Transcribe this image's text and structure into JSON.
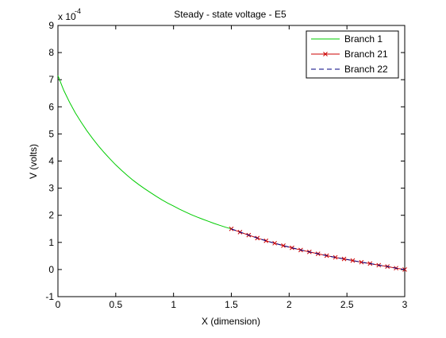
{
  "chart_data": {
    "type": "line",
    "title": "Steady - state voltage - E5",
    "xlabel": "X (dimension)",
    "ylabel": "V (volts)",
    "y_multiplier_base": "x 10",
    "y_multiplier_exp": "-4",
    "xlim": [
      0,
      3
    ],
    "ylim": [
      -1,
      9
    ],
    "xticks": [
      0,
      0.5,
      1,
      1.5,
      2,
      2.5,
      3
    ],
    "xtick_labels": [
      "0",
      "0.5",
      "1",
      "1.5",
      "2",
      "2.5",
      "3"
    ],
    "yticks": [
      -1,
      0,
      1,
      2,
      3,
      4,
      5,
      6,
      7,
      8,
      9
    ],
    "ytick_labels": [
      "-1",
      "0",
      "1",
      "2",
      "3",
      "4",
      "5",
      "6",
      "7",
      "8",
      "9"
    ],
    "grid": false,
    "legend_position": "top-right",
    "series": [
      {
        "name": "Branch 1",
        "color": "#00cc00",
        "style": "solid",
        "marker": "none",
        "x": [
          0,
          0.05,
          0.1,
          0.15,
          0.2,
          0.25,
          0.3,
          0.35,
          0.4,
          0.45,
          0.5,
          0.55,
          0.6,
          0.65,
          0.7,
          0.75,
          0.8,
          0.85,
          0.9,
          0.95,
          1.0,
          1.05,
          1.1,
          1.15,
          1.2,
          1.25,
          1.3,
          1.35,
          1.4,
          1.45,
          1.5
        ],
        "y": [
          7.15,
          6.61,
          6.17,
          5.78,
          5.44,
          5.12,
          4.83,
          4.56,
          4.31,
          4.08,
          3.86,
          3.66,
          3.47,
          3.29,
          3.13,
          2.98,
          2.84,
          2.7,
          2.57,
          2.45,
          2.34,
          2.23,
          2.13,
          2.03,
          1.94,
          1.86,
          1.78,
          1.7,
          1.63,
          1.56,
          1.5
        ]
      },
      {
        "name": "Branch 21",
        "color": "#cc0000",
        "style": "solid",
        "marker": "x",
        "x": [
          1.5,
          1.575,
          1.65,
          1.725,
          1.8,
          1.875,
          1.95,
          2.025,
          2.1,
          2.175,
          2.25,
          2.325,
          2.4,
          2.475,
          2.55,
          2.625,
          2.7,
          2.775,
          2.85,
          2.925,
          3.0
        ],
        "y": [
          1.5,
          1.38,
          1.27,
          1.16,
          1.06,
          0.97,
          0.88,
          0.8,
          0.72,
          0.65,
          0.58,
          0.51,
          0.45,
          0.39,
          0.33,
          0.27,
          0.22,
          0.16,
          0.11,
          0.05,
          0.0
        ]
      },
      {
        "name": "Branch 22",
        "color": "#000080",
        "style": "dashed",
        "marker": "none",
        "x": [
          1.5,
          1.575,
          1.65,
          1.725,
          1.8,
          1.875,
          1.95,
          2.025,
          2.1,
          2.175,
          2.25,
          2.325,
          2.4,
          2.475,
          2.55,
          2.625,
          2.7,
          2.775,
          2.85,
          2.925,
          3.0
        ],
        "y": [
          1.5,
          1.38,
          1.27,
          1.16,
          1.06,
          0.97,
          0.88,
          0.8,
          0.72,
          0.65,
          0.58,
          0.51,
          0.45,
          0.39,
          0.33,
          0.27,
          0.22,
          0.16,
          0.11,
          0.05,
          0.0
        ]
      }
    ]
  }
}
